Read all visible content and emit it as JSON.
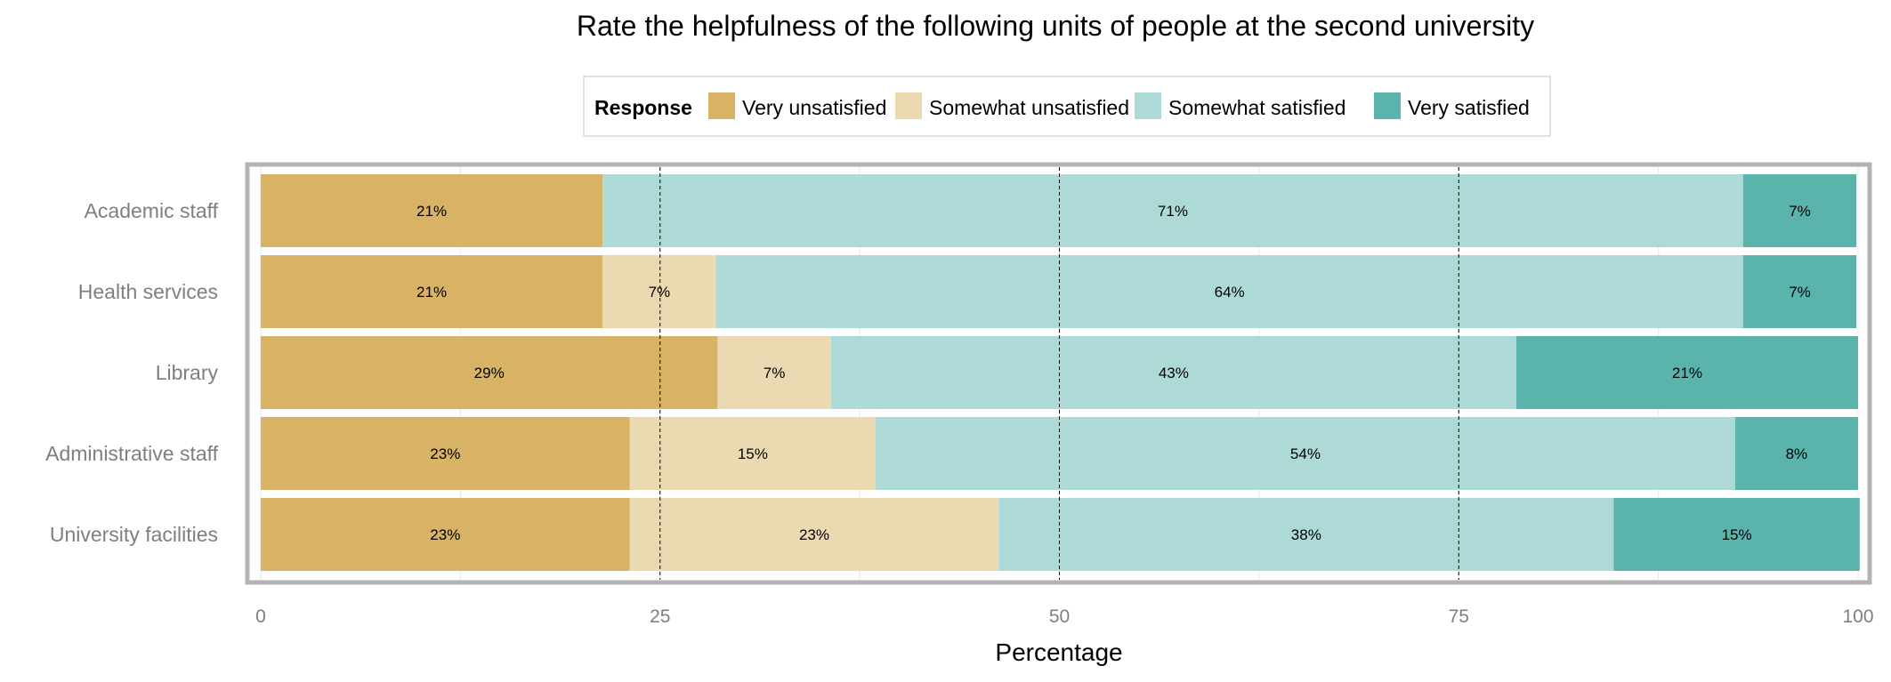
{
  "chart_data": {
    "type": "bar",
    "orientation": "horizontal",
    "stacked": true,
    "title": "Rate the helpfulness of the following units of people at the second university",
    "xlabel": "Percentage",
    "ylabel": "",
    "xlim": [
      0,
      100
    ],
    "xticks": [
      "0",
      "25",
      "50",
      "75",
      "100"
    ],
    "reference_lines": [
      25,
      50,
      75
    ],
    "grid": true,
    "legend": {
      "title": "Response",
      "position": "top"
    },
    "categories": [
      "Academic staff",
      "Health services",
      "Library",
      "Administrative staff",
      "University facilities"
    ],
    "series": [
      {
        "name": "Very unsatisfied",
        "color": "#d8b365",
        "values": [
          21.4,
          21.4,
          28.6,
          23.1,
          23.1
        ],
        "labels": [
          "21%",
          "21%",
          "29%",
          "23%",
          "23%"
        ]
      },
      {
        "name": "Somewhat unsatisfied",
        "color": "#ebd9b2",
        "values": [
          0,
          7.1,
          7.1,
          15.4,
          23.1
        ],
        "labels": [
          "",
          "7%",
          "7%",
          "15%",
          "23%"
        ]
      },
      {
        "name": "Somewhat satisfied",
        "color": "#add9d6",
        "values": [
          71.4,
          64.3,
          42.9,
          53.8,
          38.5
        ],
        "labels": [
          "71%",
          "64%",
          "43%",
          "54%",
          "38%"
        ]
      },
      {
        "name": "Very satisfied",
        "color": "#5ab4ac",
        "values": [
          7.1,
          7.1,
          21.4,
          7.7,
          15.4
        ],
        "labels": [
          "7%",
          "7%",
          "21%",
          "8%",
          "15%"
        ]
      }
    ]
  }
}
